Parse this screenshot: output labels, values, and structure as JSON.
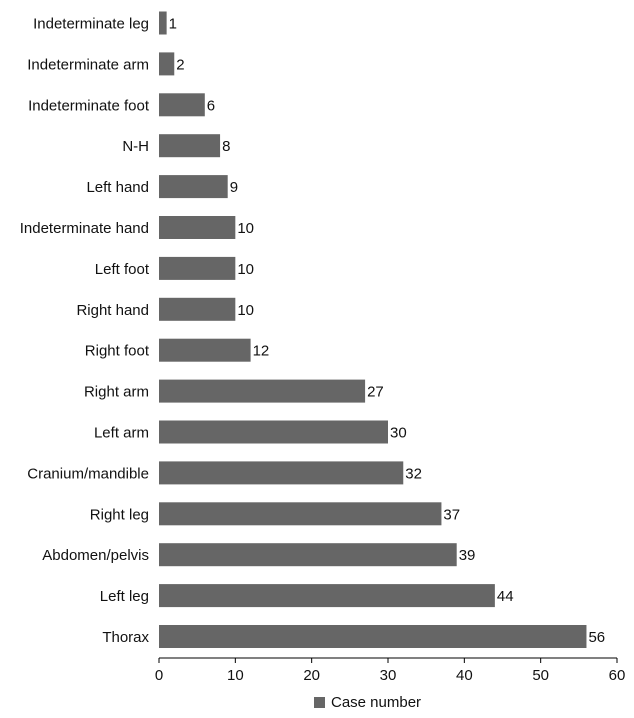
{
  "chart_data": {
    "type": "bar",
    "orientation": "horizontal",
    "categories": [
      "Indeterminate leg",
      "Indeterminate arm",
      "Indeterminate foot",
      "N-H",
      "Left hand",
      "Indeterminate hand",
      "Left foot",
      "Right hand",
      "Right foot",
      "Right arm",
      "Left arm",
      "Cranium/mandible",
      "Right leg",
      "Abdomen/pelvis",
      "Left leg",
      "Thorax"
    ],
    "series": [
      {
        "name": "Case number",
        "values": [
          1,
          2,
          6,
          8,
          9,
          10,
          10,
          10,
          12,
          27,
          30,
          32,
          37,
          39,
          44,
          56
        ]
      }
    ],
    "title": "",
    "xlabel": "",
    "ylabel": "",
    "xlim": [
      0,
      60
    ],
    "x_ticks": [
      0,
      10,
      20,
      30,
      40,
      50,
      60
    ],
    "grid": false,
    "legend_position": "bottom-center",
    "data_labels": true,
    "colors": {
      "bar": "#666666",
      "axis": "#000000",
      "text": "#111111"
    }
  }
}
